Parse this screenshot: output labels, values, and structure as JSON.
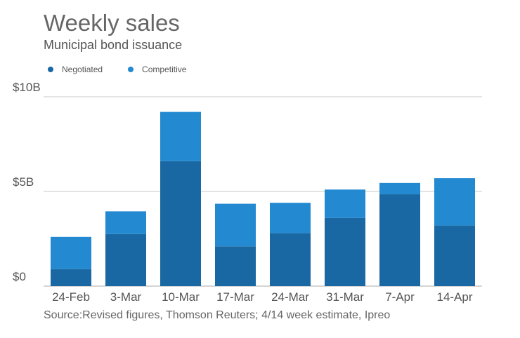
{
  "chart_data": {
    "type": "bar",
    "stacked": true,
    "title": "Weekly sales",
    "subtitle": "Municipal bond issuance",
    "categories": [
      "24-Feb",
      "3-Mar",
      "10-Mar",
      "17-Mar",
      "24-Mar",
      "31-Mar",
      "7-Apr",
      "14-Apr"
    ],
    "series": [
      {
        "name": "Negotiated",
        "color": "#1a68a3",
        "values": [
          0.9,
          2.75,
          6.6,
          2.1,
          2.8,
          3.6,
          4.85,
          3.2
        ]
      },
      {
        "name": "Competitive",
        "color": "#2389d1",
        "values": [
          1.7,
          1.2,
          2.6,
          2.25,
          1.6,
          1.5,
          0.6,
          2.5
        ]
      }
    ],
    "yticks": [
      {
        "value": 0,
        "label": "$0"
      },
      {
        "value": 5,
        "label": "$5B"
      },
      {
        "value": 10,
        "label": "$10B"
      }
    ],
    "ylim": [
      0,
      10
    ],
    "xlabel": "",
    "ylabel": "",
    "legend_position": "top-left",
    "source": "Source:Revised figures, Thomson Reuters; 4/14 week estimate, Ipreo"
  }
}
